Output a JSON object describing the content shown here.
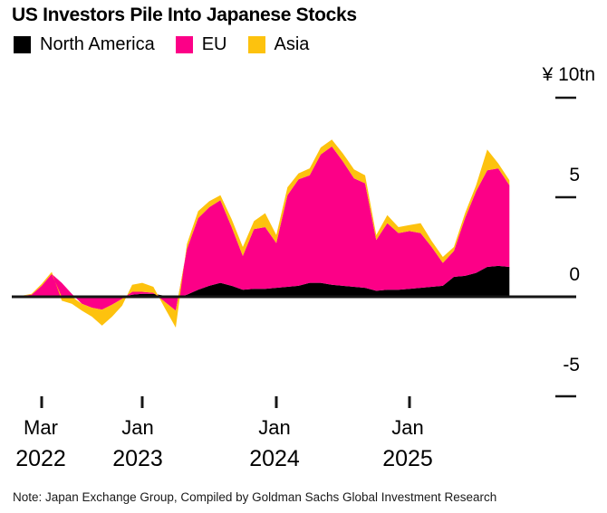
{
  "chart_data": {
    "type": "area",
    "stacked": true,
    "title": "US Investors Pile Into Japanese Stocks",
    "note": "Note: Japan Exchange Group, Compiled by Goldman Sachs Global Investment Research",
    "y_axis": {
      "unit_label": "¥ 10tn",
      "tick_values": [
        10,
        5,
        0,
        -5
      ],
      "tick_labels": [
        "¥ 10tn",
        "5",
        "0",
        "-5"
      ],
      "range": [
        -6.5,
        11
      ],
      "grid": false,
      "zero_line": true
    },
    "x_axis": {
      "ticks": [
        {
          "month_label": "Mar",
          "year_label": "2022",
          "month": "2022-03"
        },
        {
          "month_label": "Jan",
          "year_label": "2023",
          "month": "2023-01"
        },
        {
          "month_label": "Jan",
          "year_label": "2024",
          "month": "2024-01"
        },
        {
          "month_label": "Jan",
          "year_label": "2025",
          "month": "2025-01"
        }
      ]
    },
    "legend_position": "top-left",
    "months": [
      "2022-01",
      "2022-02",
      "2022-03",
      "2022-04",
      "2022-05",
      "2022-06",
      "2022-07",
      "2022-08",
      "2022-09",
      "2022-10",
      "2022-11",
      "2022-12",
      "2023-01",
      "2023-02",
      "2023-03",
      "2023-04",
      "2023-05",
      "2023-06",
      "2023-07",
      "2023-08",
      "2023-09",
      "2023-10",
      "2023-11",
      "2023-12",
      "2024-01",
      "2024-02",
      "2024-03",
      "2024-04",
      "2024-05",
      "2024-06",
      "2024-07",
      "2024-08",
      "2024-09",
      "2024-10",
      "2024-11",
      "2024-12",
      "2025-01",
      "2025-02",
      "2025-03",
      "2025-04",
      "2025-05",
      "2025-06",
      "2025-07",
      "2025-08",
      "2025-09",
      "2025-10"
    ],
    "series": [
      {
        "name": "North America",
        "color": "#000000",
        "values": [
          0,
          0,
          0.05,
          0.05,
          0,
          0,
          -0.05,
          -0.05,
          -0.05,
          -0.05,
          0,
          0.1,
          0.15,
          0.15,
          0.05,
          -0.05,
          0.1,
          0.35,
          0.55,
          0.7,
          0.55,
          0.35,
          0.4,
          0.4,
          0.45,
          0.5,
          0.55,
          0.7,
          0.7,
          0.6,
          0.55,
          0.5,
          0.45,
          0.3,
          0.35,
          0.35,
          0.4,
          0.45,
          0.5,
          0.55,
          1.0,
          1.05,
          1.2,
          1.5,
          1.55,
          1.5
        ]
      },
      {
        "name": "EU",
        "color": "#fc0087",
        "values": [
          0.05,
          0.1,
          0.5,
          1.1,
          0.7,
          0.15,
          -0.3,
          -0.5,
          -0.6,
          -0.35,
          -0.1,
          0.15,
          0.1,
          0.05,
          -0.25,
          -0.65,
          2.3,
          3.6,
          3.95,
          4.15,
          2.95,
          1.7,
          3.0,
          3.1,
          2.25,
          4.6,
          5.35,
          5.4,
          6.45,
          6.95,
          6.25,
          5.45,
          5.25,
          2.55,
          3.35,
          2.85,
          2.9,
          2.75,
          2.0,
          1.15,
          1.3,
          2.9,
          4.1,
          4.85,
          4.9,
          4.1
        ]
      },
      {
        "name": "Asia",
        "color": "#fdc20e",
        "values": [
          0,
          0.05,
          0.1,
          0.1,
          -0.2,
          -0.35,
          -0.35,
          -0.45,
          -0.8,
          -0.6,
          -0.35,
          0.35,
          0.45,
          0.3,
          -0.3,
          -0.85,
          0.25,
          0.35,
          0.3,
          0.25,
          0.4,
          0.45,
          0.4,
          0.7,
          0.4,
          0.4,
          0.3,
          0.35,
          0.35,
          0.35,
          0.4,
          0.45,
          0.4,
          0.25,
          0.4,
          0.3,
          0.3,
          0.5,
          0.3,
          0.3,
          0.2,
          0.25,
          0.3,
          1.05,
          0.25,
          0.25
        ]
      }
    ]
  }
}
